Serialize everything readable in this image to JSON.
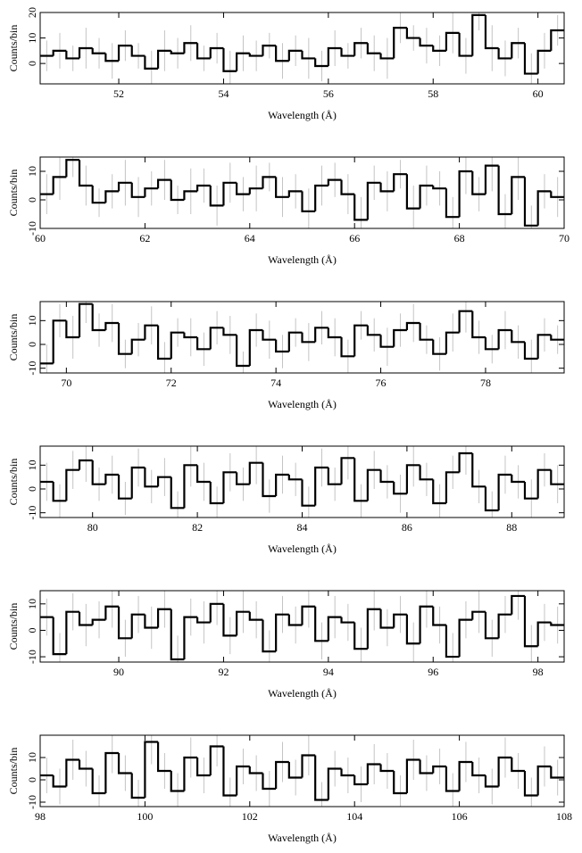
{
  "chart_data": [
    {
      "type": "histogram",
      "xlabel": "Wavelength (Å)",
      "ylabel": "Counts/bin",
      "color": "#000000",
      "error_color": "#c4c4c4",
      "xlim": [
        50.5,
        60.5
      ],
      "xticks": [
        52,
        54,
        56,
        58,
        60
      ],
      "ylim": [
        -8,
        20
      ],
      "yticks": [
        0,
        10,
        20
      ],
      "bins": [
        50.5,
        50.75,
        51,
        51.25,
        51.5,
        51.75,
        52,
        52.25,
        52.5,
        52.75,
        53,
        53.25,
        53.5,
        53.75,
        54,
        54.25,
        54.5,
        54.75,
        55,
        55.25,
        55.5,
        55.75,
        56,
        56.25,
        56.5,
        56.75,
        57,
        57.25,
        57.5,
        57.75,
        58,
        58.25,
        58.5,
        58.75,
        59,
        59.25,
        59.5,
        59.75,
        60,
        60.25,
        60.5
      ],
      "values": [
        3,
        5,
        2,
        6,
        4,
        1,
        7,
        3,
        -2,
        5,
        4,
        8,
        2,
        6,
        -3,
        4,
        3,
        7,
        1,
        5,
        2,
        -1,
        6,
        3,
        8,
        4,
        2,
        14,
        10,
        7,
        5,
        12,
        3,
        19,
        6,
        2,
        8,
        -4,
        5,
        13
      ],
      "errors": [
        6,
        7,
        5,
        8,
        6,
        7,
        6,
        5,
        7,
        8,
        6,
        7,
        5,
        6,
        8,
        7,
        6,
        5,
        7,
        6,
        8,
        6,
        7,
        5,
        6,
        7,
        8,
        6,
        5,
        7,
        6,
        8,
        7,
        6,
        9,
        7,
        6,
        8,
        7,
        6
      ]
    },
    {
      "type": "histogram",
      "xlabel": "Wavelength (Å)",
      "ylabel": "Counts/bin",
      "color": "#000000",
      "error_color": "#c4c4c4",
      "xlim": [
        60,
        70
      ],
      "xticks": [
        60,
        62,
        64,
        66,
        68,
        70
      ],
      "ylim": [
        -10,
        15
      ],
      "yticks": [
        -10,
        0,
        10
      ],
      "bins": [
        60,
        60.25,
        60.5,
        60.75,
        61,
        61.25,
        61.5,
        61.75,
        62,
        62.25,
        62.5,
        62.75,
        63,
        63.25,
        63.5,
        63.75,
        64,
        64.25,
        64.5,
        64.75,
        65,
        65.25,
        65.5,
        65.75,
        66,
        66.25,
        66.5,
        66.75,
        67,
        67.25,
        67.5,
        67.75,
        68,
        68.25,
        68.5,
        68.75,
        69,
        69.25,
        69.5,
        69.75,
        70
      ],
      "values": [
        2,
        8,
        14,
        5,
        -1,
        3,
        6,
        1,
        4,
        7,
        0,
        3,
        5,
        -2,
        6,
        2,
        4,
        8,
        1,
        3,
        -4,
        5,
        7,
        2,
        -7,
        6,
        3,
        9,
        -3,
        5,
        4,
        -6,
        10,
        2,
        12,
        -5,
        8,
        -9,
        3,
        1
      ],
      "errors": [
        7,
        8,
        6,
        7,
        5,
        6,
        8,
        7,
        6,
        7,
        5,
        8,
        6,
        7,
        7,
        6,
        8,
        5,
        7,
        6,
        8,
        7,
        6,
        7,
        8,
        6,
        7,
        5,
        8,
        7,
        6,
        7,
        8,
        6,
        9,
        7,
        8,
        7,
        6,
        7
      ]
    },
    {
      "type": "histogram",
      "xlabel": "Wavelength (Å)",
      "ylabel": "Counts/bin",
      "color": "#000000",
      "error_color": "#c4c4c4",
      "xlim": [
        69.5,
        79.5
      ],
      "xticks": [
        70,
        72,
        74,
        76,
        78
      ],
      "ylim": [
        -12,
        18
      ],
      "yticks": [
        -10,
        0,
        10
      ],
      "bins": [
        69.5,
        69.75,
        70,
        70.25,
        70.5,
        70.75,
        71,
        71.25,
        71.5,
        71.75,
        72,
        72.25,
        72.5,
        72.75,
        73,
        73.25,
        73.5,
        73.75,
        74,
        74.25,
        74.5,
        74.75,
        75,
        75.25,
        75.5,
        75.75,
        76,
        76.25,
        76.5,
        76.75,
        77,
        77.25,
        77.5,
        77.75,
        78,
        78.25,
        78.5,
        78.75,
        79,
        79.25,
        79.5
      ],
      "values": [
        -8,
        10,
        3,
        17,
        6,
        9,
        -4,
        2,
        8,
        -6,
        5,
        3,
        -2,
        7,
        4,
        -9,
        6,
        2,
        -3,
        5,
        1,
        7,
        3,
        -5,
        8,
        4,
        -1,
        6,
        9,
        2,
        -4,
        5,
        14,
        3,
        -2,
        6,
        1,
        -6,
        4,
        2
      ],
      "errors": [
        8,
        7,
        9,
        8,
        7,
        8,
        6,
        7,
        8,
        7,
        6,
        8,
        7,
        7,
        8,
        6,
        7,
        8,
        7,
        6,
        8,
        7,
        8,
        7,
        6,
        7,
        8,
        7,
        8,
        6,
        7,
        8,
        9,
        7,
        6,
        8,
        7,
        8,
        7,
        6
      ]
    },
    {
      "type": "histogram",
      "xlabel": "Wavelength (Å)",
      "ylabel": "Counts/bin",
      "color": "#000000",
      "error_color": "#c4c4c4",
      "xlim": [
        79,
        89
      ],
      "xticks": [
        80,
        82,
        84,
        86,
        88
      ],
      "ylim": [
        -12,
        18
      ],
      "yticks": [
        -10,
        0,
        10
      ],
      "bins": [
        79,
        79.25,
        79.5,
        79.75,
        80,
        80.25,
        80.5,
        80.75,
        81,
        81.25,
        81.5,
        81.75,
        82,
        82.25,
        82.5,
        82.75,
        83,
        83.25,
        83.5,
        83.75,
        84,
        84.25,
        84.5,
        84.75,
        85,
        85.25,
        85.5,
        85.75,
        86,
        86.25,
        86.5,
        86.75,
        87,
        87.25,
        87.5,
        87.75,
        88,
        88.25,
        88.5,
        88.75,
        89
      ],
      "values": [
        3,
        -5,
        8,
        12,
        2,
        6,
        -4,
        9,
        1,
        5,
        -8,
        10,
        3,
        -6,
        7,
        2,
        11,
        -3,
        6,
        4,
        -7,
        9,
        2,
        13,
        -5,
        8,
        3,
        -2,
        10,
        4,
        -6,
        7,
        15,
        1,
        -9,
        6,
        3,
        -4,
        8,
        2
      ],
      "errors": [
        8,
        7,
        8,
        9,
        7,
        8,
        7,
        8,
        7,
        8,
        7,
        9,
        8,
        7,
        8,
        7,
        9,
        7,
        8,
        7,
        8,
        8,
        7,
        9,
        7,
        8,
        7,
        8,
        9,
        7,
        8,
        7,
        9,
        7,
        8,
        8,
        7,
        8,
        7,
        8
      ]
    },
    {
      "type": "histogram",
      "xlabel": "Wavelength (Å)",
      "ylabel": "Counts/bin",
      "color": "#000000",
      "error_color": "#c4c4c4",
      "xlim": [
        88.5,
        98.5
      ],
      "xticks": [
        90,
        92,
        94,
        96,
        98
      ],
      "ylim": [
        -12,
        15
      ],
      "yticks": [
        -10,
        0,
        10
      ],
      "bins": [
        88.5,
        88.75,
        89,
        89.25,
        89.5,
        89.75,
        90,
        90.25,
        90.5,
        90.75,
        91,
        91.25,
        91.5,
        91.75,
        92,
        92.25,
        92.5,
        92.75,
        93,
        93.25,
        93.5,
        93.75,
        94,
        94.25,
        94.5,
        94.75,
        95,
        95.25,
        95.5,
        95.75,
        96,
        96.25,
        96.5,
        96.75,
        97,
        97.25,
        97.5,
        97.75,
        98,
        98.25,
        98.5
      ],
      "values": [
        5,
        -9,
        7,
        2,
        4,
        9,
        -3,
        6,
        1,
        8,
        -11,
        5,
        3,
        10,
        -2,
        7,
        4,
        -8,
        6,
        2,
        9,
        -4,
        5,
        3,
        -7,
        8,
        1,
        6,
        -5,
        9,
        2,
        -10,
        4,
        7,
        -3,
        6,
        13,
        -6,
        3,
        2
      ],
      "errors": [
        7,
        8,
        7,
        8,
        7,
        8,
        7,
        7,
        8,
        7,
        9,
        7,
        8,
        8,
        7,
        8,
        7,
        8,
        7,
        7,
        8,
        7,
        8,
        7,
        8,
        8,
        7,
        7,
        8,
        8,
        7,
        9,
        7,
        8,
        7,
        7,
        9,
        8,
        7,
        7
      ]
    },
    {
      "type": "histogram",
      "xlabel": "Wavelength (Å)",
      "ylabel": "Counts/bin",
      "color": "#000000",
      "error_color": "#c4c4c4",
      "xlim": [
        98,
        108
      ],
      "xticks": [
        98,
        100,
        102,
        104,
        106,
        108
      ],
      "ylim": [
        -12,
        20
      ],
      "yticks": [
        -10,
        0,
        10
      ],
      "bins": [
        98,
        98.25,
        98.5,
        98.75,
        99,
        99.25,
        99.5,
        99.75,
        100,
        100.25,
        100.5,
        100.75,
        101,
        101.25,
        101.5,
        101.75,
        102,
        102.25,
        102.5,
        102.75,
        103,
        103.25,
        103.5,
        103.75,
        104,
        104.25,
        104.5,
        104.75,
        105,
        105.25,
        105.5,
        105.75,
        106,
        106.25,
        106.5,
        106.75,
        107,
        107.25,
        107.5,
        107.75,
        108
      ],
      "values": [
        2,
        -3,
        9,
        5,
        -6,
        12,
        3,
        -8,
        17,
        4,
        -5,
        10,
        2,
        15,
        -7,
        6,
        3,
        -4,
        8,
        1,
        11,
        -9,
        5,
        2,
        -2,
        7,
        4,
        -6,
        9,
        3,
        6,
        -5,
        8,
        2,
        -3,
        10,
        4,
        -7,
        6,
        1
      ],
      "errors": [
        8,
        8,
        9,
        8,
        8,
        9,
        8,
        8,
        10,
        8,
        8,
        9,
        8,
        9,
        8,
        8,
        8,
        8,
        9,
        8,
        9,
        8,
        8,
        8,
        8,
        9,
        8,
        8,
        9,
        8,
        8,
        8,
        9,
        8,
        8,
        9,
        8,
        8,
        9,
        8
      ]
    }
  ]
}
